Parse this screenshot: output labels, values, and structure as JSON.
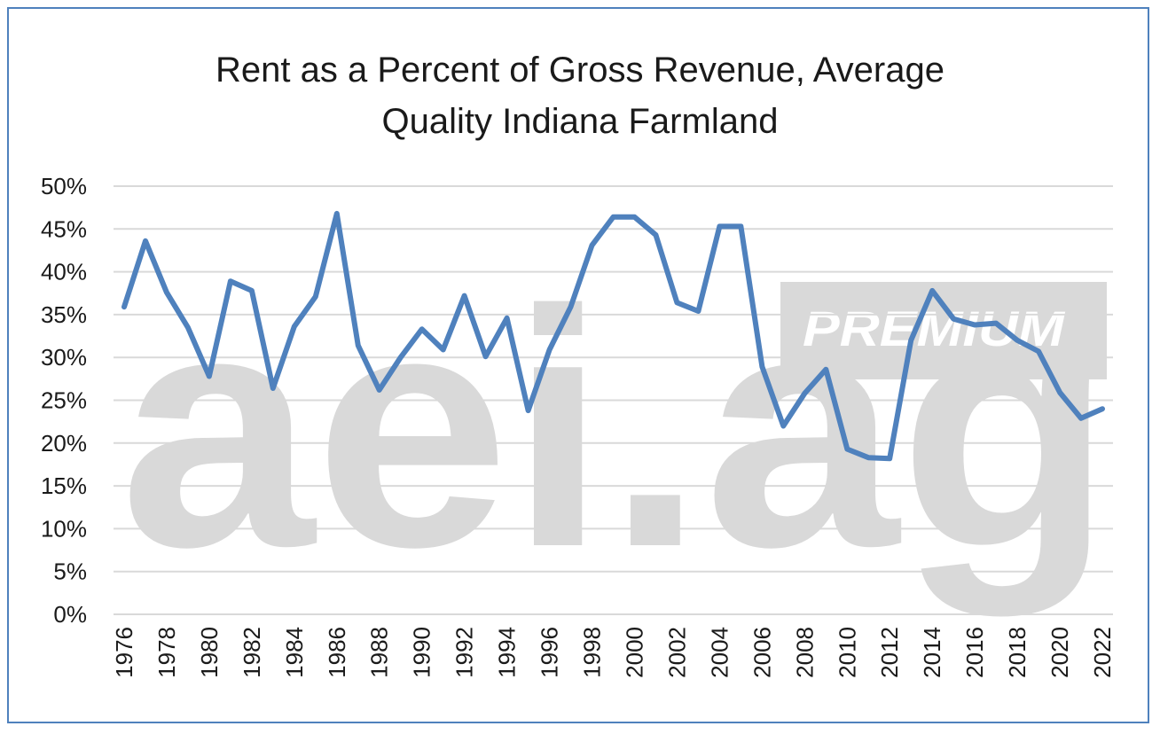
{
  "watermark": {
    "brand": "aei.ag",
    "tag": "PREMIUM"
  },
  "colors": {
    "line": "#4f81bd",
    "grid": "#d9d9d9",
    "frame": "#4f81bd",
    "watermark": "#d9d9d9"
  },
  "chart_data": {
    "type": "line",
    "title_line1": "Rent as a Percent of Gross Revenue, Average",
    "title_line2": "Quality Indiana Farmland",
    "xlabel": "",
    "ylabel": "",
    "ylim": [
      0,
      50
    ],
    "y_ticks": [
      "0%",
      "5%",
      "10%",
      "15%",
      "20%",
      "25%",
      "30%",
      "35%",
      "40%",
      "45%",
      "50%"
    ],
    "x_ticks": [
      "1976",
      "1978",
      "1980",
      "1982",
      "1984",
      "1986",
      "1988",
      "1990",
      "1992",
      "1994",
      "1996",
      "1998",
      "2000",
      "2002",
      "2004",
      "2006",
      "2008",
      "2010",
      "2012",
      "2014",
      "2016",
      "2018",
      "2020",
      "2022"
    ],
    "grid": true,
    "legend": "none",
    "series": [
      {
        "name": "Rent as a Percent of Gross Revenue",
        "x": [
          1976,
          1977,
          1978,
          1979,
          1980,
          1981,
          1982,
          1983,
          1984,
          1985,
          1986,
          1987,
          1988,
          1989,
          1990,
          1991,
          1992,
          1993,
          1994,
          1995,
          1996,
          1997,
          1998,
          1999,
          2000,
          2001,
          2002,
          2003,
          2004,
          2005,
          2006,
          2007,
          2008,
          2009,
          2010,
          2011,
          2012,
          2013,
          2014,
          2015,
          2016,
          2017,
          2018,
          2019,
          2020,
          2021,
          2022
        ],
        "values": [
          35.9,
          43.6,
          37.6,
          33.5,
          27.8,
          38.9,
          37.8,
          26.4,
          33.6,
          37.1,
          46.8,
          31.4,
          26.2,
          30.0,
          33.3,
          30.9,
          37.2,
          30.1,
          34.6,
          23.8,
          30.9,
          35.9,
          43.1,
          46.4,
          46.4,
          44.3,
          36.4,
          35.4,
          45.3,
          45.3,
          28.9,
          22.0,
          25.8,
          28.6,
          19.3,
          18.3,
          18.2,
          32.0,
          37.8,
          34.5,
          33.8,
          34.0,
          32.0,
          30.7,
          25.9,
          22.9,
          24.0
        ]
      }
    ]
  }
}
